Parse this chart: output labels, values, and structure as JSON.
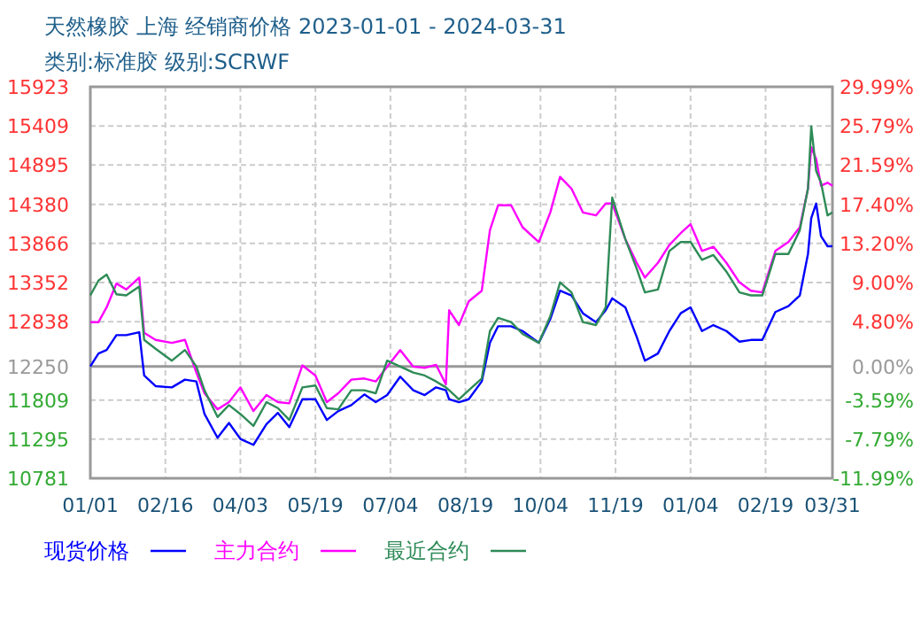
{
  "chart_data": {
    "type": "line",
    "title": "天然橡胶 上海 经销商价格 2023-01-01 - 2024-03-31",
    "subtitle": "类别:标准胶 级别:SCRWF",
    "x": [
      "2023-01-01",
      "2023-01-06",
      "2023-01-11",
      "2023-01-17",
      "2023-01-23",
      "2023-01-31",
      "2023-02-03",
      "2023-02-10",
      "2023-02-20",
      "2023-02-28",
      "2023-03-07",
      "2023-03-12",
      "2023-03-20",
      "2023-03-27",
      "2023-04-03",
      "2023-04-11",
      "2023-04-19",
      "2023-04-26",
      "2023-05-03",
      "2023-05-11",
      "2023-05-19",
      "2023-05-26",
      "2023-06-02",
      "2023-06-10",
      "2023-06-18",
      "2023-06-25",
      "2023-07-02",
      "2023-07-10",
      "2023-07-18",
      "2023-07-25",
      "2023-08-01",
      "2023-08-07",
      "2023-08-09",
      "2023-08-15",
      "2023-08-21",
      "2023-08-29",
      "2023-09-03",
      "2023-09-08",
      "2023-09-16",
      "2023-09-23",
      "2023-10-03",
      "2023-10-10",
      "2023-10-16",
      "2023-10-23",
      "2023-10-30",
      "2023-11-07",
      "2023-11-13",
      "2023-11-17",
      "2023-11-25",
      "2023-12-02",
      "2023-12-07",
      "2023-12-15",
      "2023-12-22",
      "2023-12-29",
      "2024-01-04",
      "2024-01-11",
      "2024-01-18",
      "2024-01-26",
      "2024-02-03",
      "2024-02-10",
      "2024-02-17",
      "2024-02-25",
      "2024-03-04",
      "2024-03-11",
      "2024-03-16",
      "2024-03-18",
      "2024-03-21",
      "2024-03-24",
      "2024-03-28",
      "2024-03-31"
    ],
    "series": [
      {
        "name": "现货价格",
        "color": "#0000ff",
        "values": [
          12250,
          12420,
          12466,
          12661,
          12661,
          12700,
          12131,
          11991,
          11975,
          12077,
          12053,
          11625,
          11313,
          11508,
          11298,
          11220,
          11492,
          11640,
          11453,
          11819,
          11819,
          11547,
          11664,
          11742,
          11882,
          11781,
          11874,
          12116,
          11937,
          11874,
          11975,
          11937,
          11819,
          11781,
          11819,
          12053,
          12560,
          12778,
          12778,
          12715,
          12560,
          12871,
          13245,
          13183,
          12949,
          12832,
          12988,
          13144,
          13027,
          12638,
          12326,
          12420,
          12715,
          12949,
          13027,
          12715,
          12793,
          12715,
          12575,
          12598,
          12598,
          12965,
          13043,
          13183,
          13728,
          14196,
          14390,
          13962,
          13829,
          13829
        ]
      },
      {
        "name": "主力合约",
        "color": "#ff00ff",
        "values": [
          12832,
          12832,
          13027,
          13339,
          13261,
          13417,
          12692,
          12599,
          12560,
          12599,
          12170,
          11898,
          11687,
          11781,
          11975,
          11664,
          11874,
          11781,
          11765,
          12264,
          12131,
          11781,
          11898,
          12077,
          12092,
          12053,
          12248,
          12466,
          12248,
          12232,
          12271,
          12014,
          12988,
          12794,
          13105,
          13245,
          14040,
          14367,
          14367,
          14079,
          13884,
          14273,
          14741,
          14585,
          14273,
          14234,
          14390,
          14390,
          13923,
          13611,
          13417,
          13611,
          13845,
          14001,
          14118,
          13767,
          13822,
          13611,
          13354,
          13245,
          13222,
          13767,
          13884,
          14079,
          14585,
          15130,
          14975,
          14624,
          14663,
          14624
        ]
      },
      {
        "name": "最近合约",
        "color": "#2e8b57",
        "values": [
          13183,
          13378,
          13456,
          13198,
          13183,
          13300,
          12599,
          12482,
          12326,
          12466,
          12248,
          11937,
          11586,
          11742,
          11625,
          11469,
          11781,
          11703,
          11547,
          11975,
          11999,
          11703,
          11687,
          11937,
          11937,
          11898,
          12326,
          12248,
          12170,
          12131,
          12053,
          11975,
          11937,
          11819,
          11937,
          12092,
          12715,
          12887,
          12832,
          12677,
          12560,
          12910,
          13354,
          13222,
          12832,
          12794,
          13027,
          14468,
          13923,
          13534,
          13222,
          13261,
          13767,
          13884,
          13884,
          13650,
          13713,
          13495,
          13222,
          13183,
          13183,
          13728,
          13728,
          14040,
          14585,
          15403,
          14819,
          14663,
          14234,
          14273
        ]
      }
    ],
    "xlim": [
      "2023-01-01",
      "2024-03-31"
    ],
    "xticks": [
      {
        "value": "2023-01-01",
        "label": "01/01"
      },
      {
        "value": "2023-02-16",
        "label": "02/16"
      },
      {
        "value": "2023-04-03",
        "label": "04/03"
      },
      {
        "value": "2023-05-19",
        "label": "05/19"
      },
      {
        "value": "2023-07-04",
        "label": "07/04"
      },
      {
        "value": "2023-08-19",
        "label": "08/19"
      },
      {
        "value": "2023-10-04",
        "label": "10/04"
      },
      {
        "value": "2023-11-19",
        "label": "11/19"
      },
      {
        "value": "2024-01-04",
        "label": "01/04"
      },
      {
        "value": "2024-02-19",
        "label": "02/19"
      },
      {
        "value": "2024-03-31",
        "label": "03/31"
      }
    ],
    "ylim": [
      10781,
      15923
    ],
    "yticks": [
      10781,
      11295,
      11809,
      12250,
      12838,
      13352,
      13866,
      14380,
      14895,
      15409,
      15923
    ],
    "y2lim": [
      -11.99,
      29.99
    ],
    "y2ticks": [
      {
        "value": -11.99,
        "label": "-11.99%"
      },
      {
        "value": -7.79,
        "label": "-7.79%"
      },
      {
        "value": -3.59,
        "label": "-3.59%"
      },
      {
        "value": 0,
        "label": "0.00%"
      },
      {
        "value": 4.8,
        "label": "4.80%"
      },
      {
        "value": 9,
        "label": "9.00%"
      },
      {
        "value": 13.2,
        "label": "13.20%"
      },
      {
        "value": 17.4,
        "label": "17.40%"
      },
      {
        "value": 21.59,
        "label": "21.59%"
      },
      {
        "value": 25.79,
        "label": "25.79%"
      },
      {
        "value": 29.99,
        "label": "29.99%"
      }
    ],
    "ref_lines": [
      {
        "axis": "y",
        "value": 12250,
        "color": "#999999"
      }
    ],
    "grid": true,
    "legend": "bottom",
    "line_style": "solid",
    "marker": "none"
  }
}
